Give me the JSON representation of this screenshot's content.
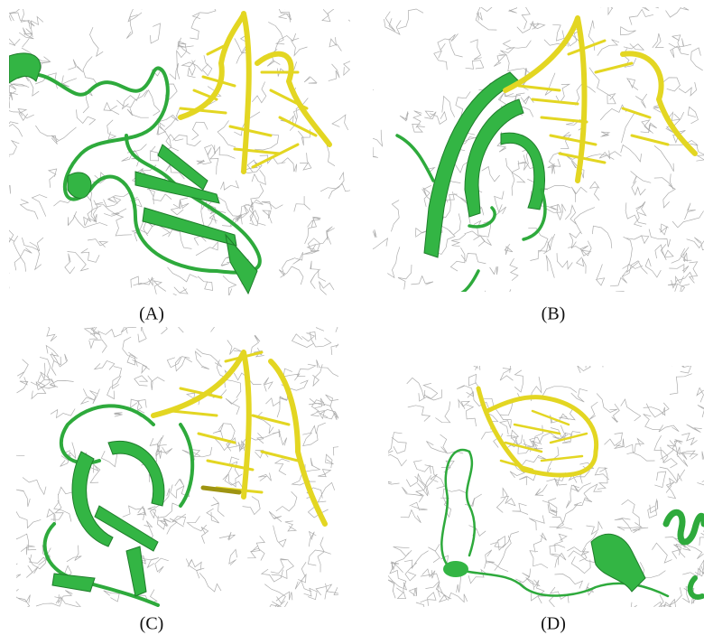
{
  "panels": [
    {
      "label": "(A)"
    },
    {
      "label": "(B)"
    },
    {
      "label": "(C)"
    },
    {
      "label": "(D)"
    }
  ]
}
